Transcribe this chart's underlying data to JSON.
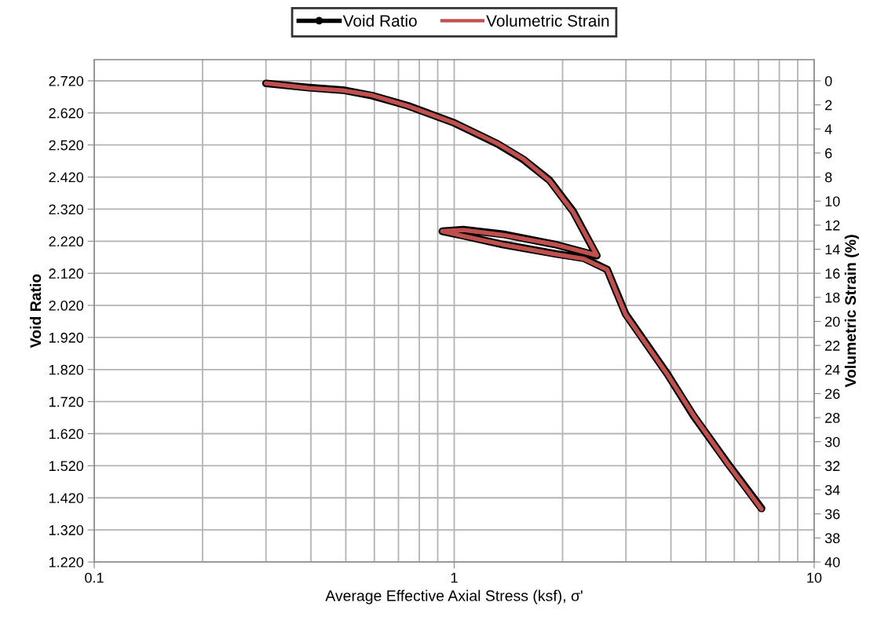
{
  "chart_data": {
    "type": "line",
    "xlabel": "Average Effective Axial Stress (ksf), σ'",
    "ylabel": "Void Ratio",
    "y2label": "Volumetric Strain (%)",
    "x": [
      0.3,
      0.395,
      0.491,
      0.59,
      0.745,
      1.0,
      1.317,
      1.556,
      1.84,
      2.14,
      2.49,
      1.905,
      1.362,
      1.06,
      0.927,
      1.06,
      1.362,
      1.905,
      2.29,
      2.66,
      2.99,
      3.91,
      4.62,
      5.74,
      7.14
    ],
    "series": [
      {
        "name": "Void Ratio",
        "color": "#000000",
        "marker": "circle",
        "values": [
          2.712,
          2.699,
          2.691,
          2.674,
          2.642,
          2.589,
          2.524,
          2.475,
          2.41,
          2.313,
          2.175,
          2.21,
          2.242,
          2.256,
          2.251,
          2.237,
          2.21,
          2.181,
          2.167,
          2.132,
          1.994,
          1.806,
          1.676,
          1.529,
          1.387
        ]
      },
      {
        "name": "Volumetric Strain",
        "color": "#c0504d",
        "axis": "y2",
        "marker": "none",
        "values": [
          0.2,
          0.6,
          0.8,
          1.2,
          2.1,
          3.5,
          5.2,
          6.5,
          8.3,
          10.9,
          14.5,
          13.6,
          12.8,
          12.4,
          12.5,
          12.9,
          13.6,
          14.4,
          14.8,
          15.7,
          19.4,
          24.4,
          27.8,
          31.8,
          35.6
        ]
      }
    ],
    "log": "x",
    "xlim": [
      0.1,
      10
    ],
    "xticks": [
      0.1,
      1,
      10
    ],
    "ylim": [
      1.22,
      2.786
    ],
    "yticks": [
      {
        "value": 1.22,
        "label": "1.220"
      },
      {
        "value": 1.32,
        "label": "1.320"
      },
      {
        "value": 1.42,
        "label": "1.420"
      },
      {
        "value": 1.52,
        "label": "1.520"
      },
      {
        "value": 1.62,
        "label": "1.620"
      },
      {
        "value": 1.72,
        "label": "1.720"
      },
      {
        "value": 1.82,
        "label": "1.820"
      },
      {
        "value": 1.92,
        "label": "1.920"
      },
      {
        "value": 2.02,
        "label": "2.020"
      },
      {
        "value": 2.12,
        "label": "2.120"
      },
      {
        "value": 2.22,
        "label": "2.220"
      },
      {
        "value": 2.32,
        "label": "2.320"
      },
      {
        "value": 2.42,
        "label": "2.420"
      },
      {
        "value": 2.52,
        "label": "2.520"
      },
      {
        "value": 2.62,
        "label": "2.620"
      },
      {
        "value": 2.72,
        "label": "2.720"
      }
    ],
    "y2lim": [
      40,
      -1.76
    ],
    "y2ticks": [
      0,
      2,
      4,
      6,
      8,
      10,
      12,
      14,
      16,
      18,
      20,
      22,
      24,
      26,
      28,
      30,
      32,
      34,
      36,
      38,
      40
    ],
    "grid": true,
    "legend": "top",
    "line_style": "solid"
  }
}
